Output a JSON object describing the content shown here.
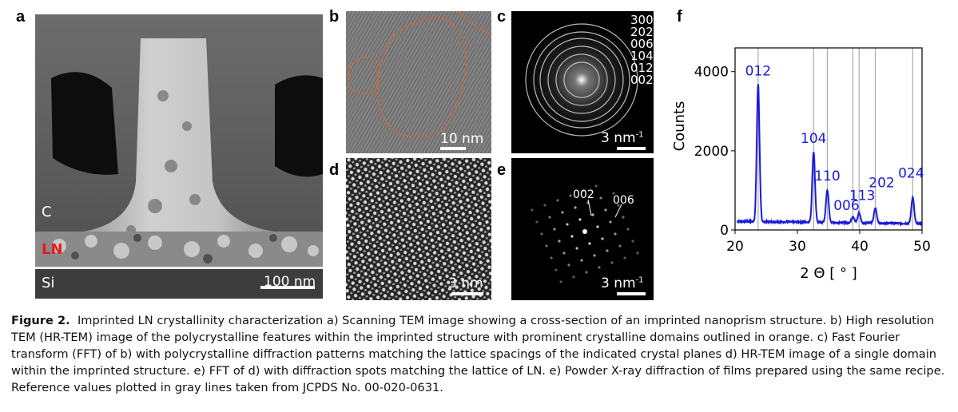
{
  "panels": {
    "a": {
      "letter": "a",
      "labels": {
        "c": "C",
        "ln": "LN",
        "si": "Si"
      },
      "scale_bar": "100 nm",
      "ln_color": "#e41a1c"
    },
    "b": {
      "letter": "b",
      "scale_bar": "10 nm",
      "domain_outline_color": "#e8661c"
    },
    "c": {
      "letter": "c",
      "scale_bar": "3 nm",
      "scale_bar_sup": "-1",
      "planes": [
        "300",
        "202",
        "006",
        "104",
        "012",
        "002"
      ]
    },
    "d": {
      "letter": "d",
      "scale_bar": "3 nm"
    },
    "e": {
      "letter": "e",
      "scale_bar": "3 nm",
      "scale_bar_sup": "-1",
      "spot_labels": [
        "002",
        "006"
      ]
    },
    "f": {
      "letter": "f"
    }
  },
  "chart_data": {
    "type": "line",
    "title": "",
    "xlabel": "2 Θ [ ° ]",
    "ylabel": "Counts",
    "xlim": [
      20,
      50
    ],
    "ylim": [
      0,
      4600
    ],
    "xticks": [
      "20",
      "30",
      "40",
      "50"
    ],
    "yticks": [
      "0",
      "2000",
      "4000"
    ],
    "series_color": "#1a1adb",
    "reference_line_color": "#aaaaaa",
    "reference_lines": [
      23.7,
      32.6,
      34.8,
      38.9,
      39.9,
      42.5,
      48.5
    ],
    "peaks": [
      {
        "x": 23.7,
        "y": 3700,
        "label": "012"
      },
      {
        "x": 32.6,
        "y": 2000,
        "label": "104"
      },
      {
        "x": 34.8,
        "y": 1050,
        "label": "110"
      },
      {
        "x": 38.9,
        "y": 380,
        "label": "006"
      },
      {
        "x": 39.9,
        "y": 470,
        "label": "113"
      },
      {
        "x": 42.5,
        "y": 600,
        "label": "202"
      },
      {
        "x": 48.5,
        "y": 880,
        "label": "024"
      }
    ],
    "baseline": 220
  },
  "caption": {
    "lead": "Figure 2.",
    "text": "Imprinted LN crystallinity characterization a) Scanning TEM image showing a cross-section of an imprinted nanoprism structure. b) High resolution TEM (HR-TEM) image of the polycrystalline features within the imprinted structure with prominent crystalline domains outlined in orange. c) Fast Fourier transform (FFT) of b) with polycrystalline diffraction patterns matching the lattice spacings of the indicated crystal planes d) HR-TEM image of a single domain within the imprinted structure. e) FFT of d) with diffraction spots matching the lattice of LN. e) Powder X-ray diffraction of films prepared using the same recipe. Reference values plotted in gray lines taken from JCPDS No. 00-020-0631."
  }
}
